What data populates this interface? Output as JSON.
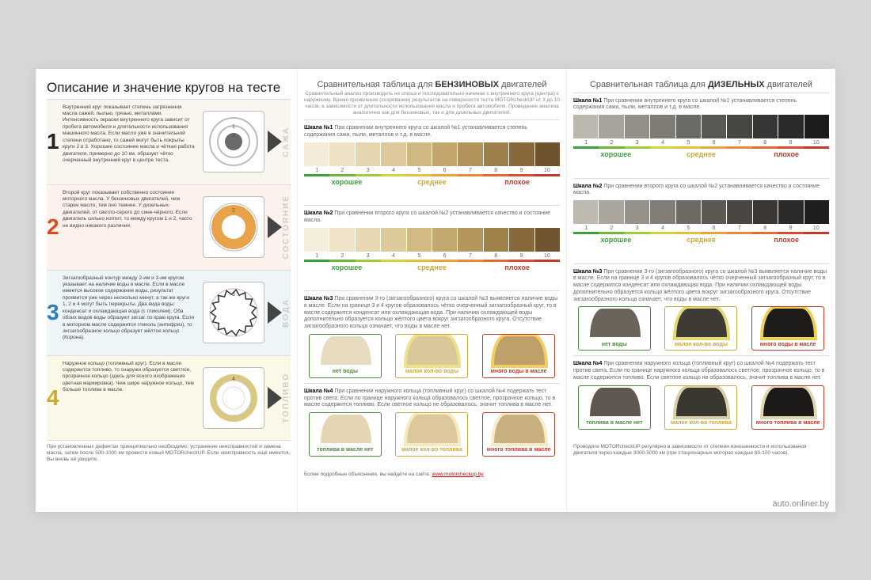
{
  "watermark": "auto.onliner.by",
  "left": {
    "title": "Описание и значение кругов на тесте",
    "rows": [
      {
        "num": "1",
        "num_color": "#222",
        "vlabel": "САЖА",
        "desc": "Внутренний круг показывает степень загрязнения масла сажей, пылью, грязью, металлами. Интенсивность окраски внутреннего круга зависит от пробега автомобиля и длительности использования машинного масла. Если масло уже в значительной степени отработано, то сажей могут быть покрыты круги 2 и 3. Хорошее состояние масла и чёткая работа двигателя, примерно до 10 км, образует чётко очерченный внутренний круг в центре теста.",
        "ring": {
          "type": "target",
          "outer": "#bbb",
          "inner": "#888",
          "center": "#6a6a6a"
        }
      },
      {
        "num": "2",
        "num_color": "#d94a1f",
        "vlabel": "СОСТОЯНИЕ",
        "desc": "Второй круг показывает собственно состояние моторного масла. У бензиновых двигателей, чем старее масло, тем оно темнее. У дизельных двигателей, от светло-серого до сине-чёрного. Если двигатель сильно коптит, то между кругом 1 и 2, часто не видно никакого различия.",
        "ring": {
          "type": "donut",
          "outer": "#e8a24a",
          "inner": "#fff"
        }
      },
      {
        "num": "3",
        "num_color": "#2a7fb8",
        "vlabel": "ВОДА",
        "desc": "Зигзагообразный контур между 2-им и 3-им кругом указывает на наличие воды в масле. Если в масле имеется высокое содержание воды, результат проявится уже через несколько минут, а так же круги 1, 2 и 4 могут быть перекрыты. Два вида воды: конденсат и охлаждающая вода (с гликолем). Оба обоих видов воды образуют зигзаг по краю круга. Если в моторном масле содержится гликоль (антифриз), то зигзагообразное кольцо образует жёлтое кольцо (Корона).",
        "ring": {
          "type": "jagged",
          "outer": "#333",
          "inner": "#fff"
        }
      },
      {
        "num": "4",
        "num_color": "#c9a93a",
        "vlabel": "ТОПЛИВО",
        "desc": "Наружное кольцо (топливный круг). Если в масле содержится топливо, то снаружи образуется светлое, прозрачное кольцо (здесь для ясного изображения цветная маркировка). Чем шире наружное кольцо, тем больше топлива в масле.",
        "ring": {
          "type": "fuel",
          "outer": "#d8c97e",
          "inner": "#fff"
        }
      }
    ],
    "footer": "При установленных дефектах принципиально необходимо: устранение неисправностей и замена масла, затем после 500-1000 км провести новый MOTORcheckUP. Если неисправность ещё имеется, Вы вновь её увидите."
  },
  "columns": [
    {
      "head_pre": "Сравнительная таблица для ",
      "head_b": "БЕНЗИНОВЫХ",
      "head_post": " двигателей",
      "sub": "Сравнительный анализ производить не спеша и последовательно начиная с внутреннего круга (центра) к наружному. Время проявления (созревания) результатов на поверхности теста MOTORcheckUP от 3 до 10 часов, в зависимости от длительности использования масла и пробега автомобиля. Проведение анализа аналогично как для бензиновых, так и для дизельных двигателей.",
      "scales": [
        {
          "title_b": "Шкала №1",
          "title": " При сравнении внутреннего круга со шкалой №1 устанавливается степень содержания сажи, пыли, металлов и т.д. в масле.",
          "swatches": [
            "#f4ecd9",
            "#eee2c6",
            "#e6d6b0",
            "#dcc89a",
            "#d0b883",
            "#c2a66e",
            "#b2935b",
            "#9e7e49",
            "#86683a",
            "#6e532e"
          ]
        },
        {
          "title_b": "Шкала №2",
          "title": " При сравнении второго круга со шкалой №2 устанавливается качество и состояние масла.",
          "swatches": [
            "#f6eedc",
            "#efe4c8",
            "#e7d8b2",
            "#ddca9b",
            "#d1ba84",
            "#c3a96f",
            "#b3965c",
            "#9f814a",
            "#87693b",
            "#6f542f"
          ]
        }
      ],
      "water": {
        "title_b": "Шкала №3",
        "title": " При сравнении 3-го (зигзагообразного) круга со шкалой №3 выявляется наличие воды в масле. Если на границе 3 и 4 кругов образовалось чётко очерченный зигзагообразный круг, то в масле содержится конденсат или охлаждающая вода. При наличии охлаждающей воды дополнительно образуется кольцо жёлтого цвета вокруг зигзагообразного круга. Отсутствие зигзагообразного кольца означает, что воды в масле нет.",
        "samples": [
          {
            "cap": "нет воды",
            "cap_color": "#4a8a3a",
            "border": "#4a8a3a",
            "blob": "#e8dcc0",
            "ring": "transparent"
          },
          {
            "cap": "малое кол-во воды",
            "cap_color": "#c9a93a",
            "border": "#c9a93a",
            "blob": "#d8c89a",
            "ring": "#efe08a"
          },
          {
            "cap": "много воды в масле",
            "cap_color": "#c0392b",
            "border": "#c0392b",
            "blob": "#bfa06a",
            "ring": "#f0d060"
          }
        ]
      },
      "fuel": {
        "title_b": "Шкала №4",
        "title": " При сравнении наружного кольца (топливный круг) со шкалой №4 подержать тест против света. Если по границе наружного кольца образовалось светлое, прозрачное кольцо, то в масле содержится топливо. Если светлое кольцо не образовалось, значит топлива в масле нет.",
        "samples": [
          {
            "cap": "топлива в масле нет",
            "cap_color": "#4a8a3a",
            "border": "#4a8a3a",
            "blob": "#e4d6b4",
            "ring": "transparent"
          },
          {
            "cap": "малое кол-во топлива",
            "cap_color": "#c9a93a",
            "border": "#c9a93a",
            "blob": "#dcc89a",
            "ring": "#f4eac0"
          },
          {
            "cap": "много топлива в масле",
            "cap_color": "#c0392b",
            "border": "#c0392b",
            "blob": "#c8b080",
            "ring": "#f6edc8"
          }
        ]
      },
      "footer_pre": "Более подробные объяснения, вы найдёте на сайте: ",
      "footer_link": "www.motorcheckup.by"
    },
    {
      "head_pre": "Сравнительная таблица для ",
      "head_b": "ДИЗЕЛЬНЫХ",
      "head_post": " двигателей",
      "sub": "",
      "scales": [
        {
          "title_b": "Шкала №1",
          "title": " При сравнении внутреннего круга со шкалой №1 устанавливается степень содержания сажи, пыли, металлов и т.д. в масле.",
          "swatches": [
            "#bcb8b0",
            "#a8a49c",
            "#949088",
            "#807c76",
            "#6c6a64",
            "#5a5852",
            "#484642",
            "#383634",
            "#2a2a28",
            "#1c1c1c"
          ]
        },
        {
          "title_b": "Шкала №2",
          "title": " При сравнении второго круга со шкалой №2 устанавливается качество и состояние масла.",
          "swatches": [
            "#beb9b1",
            "#aaa59d",
            "#969189",
            "#827d77",
            "#6e6b65",
            "#5c5953",
            "#4a4743",
            "#3a3735",
            "#2c2b29",
            "#1e1e1e"
          ]
        }
      ],
      "water": {
        "title_b": "Шкала №3",
        "title": " При сравнении 3-го (зигзагообразного) круга со шкалой №3 выявляется наличие воды в масле. Если на границе 3 и 4 кругов образовалось чётко очерченный зигзагообразный круг, то в масле содержится конденсат или охлаждающая вода. При наличии охлаждающей воды дополнительно образуется кольцо жёлтого цвета вокруг зигзагообразного круга. Отсутствие зигзагообразного кольца означает, что воды в масле нет.",
        "samples": [
          {
            "cap": "нет воды",
            "cap_color": "#4a8a3a",
            "border": "#4a8a3a",
            "blob": "#6a645a",
            "ring": "transparent"
          },
          {
            "cap": "малое кол-во воды",
            "cap_color": "#c9a93a",
            "border": "#c9a93a",
            "blob": "#3e3a34",
            "ring": "#e6d878"
          },
          {
            "cap": "много воды в масле",
            "cap_color": "#c0392b",
            "border": "#c0392b",
            "blob": "#1e1c1a",
            "ring": "#ecd050"
          }
        ]
      },
      "fuel": {
        "title_b": "Шкала №4",
        "title": " При сравнении наружного кольца (топливный круг) со шкалой №4 подержать тест против света. Если по границе наружного кольца образовалось светлое, прозрачное кольцо, то в масле содержится топливо. Если светлое кольцо не образовалось, значит топлива в масле нет.",
        "samples": [
          {
            "cap": "топлива в масле нет",
            "cap_color": "#4a8a3a",
            "border": "#4a8a3a",
            "blob": "#5e5850",
            "ring": "transparent"
          },
          {
            "cap": "малое кол-во топлива",
            "cap_color": "#c9a93a",
            "border": "#c9a93a",
            "blob": "#3a3630",
            "ring": "#d8cea8"
          },
          {
            "cap": "много топлива в масле",
            "cap_color": "#c0392b",
            "border": "#c0392b",
            "blob": "#1c1a18",
            "ring": "#e0d6b0"
          }
        ]
      },
      "footer_pre": "Проводите MOTORcheckUP регулярно в зависимости от степени изношенности и использования двигателя через каждые 3000-5000 км (при стационарных моторах каждые 80-100 часов).",
      "footer_link": ""
    }
  ],
  "scale_common": {
    "nums": [
      "1",
      "2",
      "3",
      "4",
      "5",
      "6",
      "7",
      "8",
      "9",
      "10"
    ],
    "bar_colors": [
      "#3aa23a",
      "#6db83a",
      "#a0cc3a",
      "#d4d43a",
      "#e8c038",
      "#eca436",
      "#ee8634",
      "#e86832",
      "#dc4a30",
      "#c0392b"
    ],
    "quality": [
      {
        "label": "хорошее",
        "color": "#3aa23a"
      },
      {
        "label": "среднее",
        "color": "#c9a93a"
      },
      {
        "label": "плохое",
        "color": "#c0392b"
      }
    ]
  }
}
